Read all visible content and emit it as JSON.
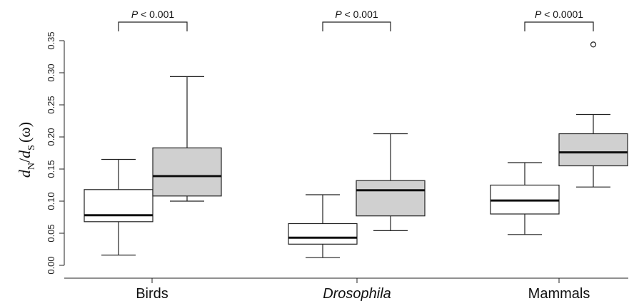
{
  "chart_data": {
    "type": "box",
    "ylabel": {
      "d1": "d",
      "sub1": "N",
      "slash": "/",
      "d2": "d",
      "sub2": "S",
      "suffix": "(ω)"
    },
    "ylim": [
      0,
      0.37
    ],
    "yticks": [
      "0.00",
      "0.05",
      "0.10",
      "0.15",
      "0.20",
      "0.25",
      "0.30",
      "0.35"
    ],
    "ytick_values": [
      0,
      0.05,
      0.1,
      0.15,
      0.2,
      0.25,
      0.3,
      0.35
    ],
    "grid": false,
    "colors": {
      "white_box": "#ffffff",
      "gray_box": "#d0d0d0",
      "stroke": "#222222"
    },
    "groups": [
      {
        "category": "Birds",
        "italic": false,
        "pvalue": {
          "p": "P",
          "rest": " < 0.001"
        },
        "boxes": [
          {
            "fill": "white",
            "whisker_low": 0.016,
            "q1": 0.068,
            "median": 0.078,
            "q3": 0.118,
            "whisker_high": 0.165,
            "outliers": []
          },
          {
            "fill": "gray",
            "whisker_low": 0.1,
            "q1": 0.108,
            "median": 0.139,
            "q3": 0.183,
            "whisker_high": 0.294,
            "outliers": []
          }
        ]
      },
      {
        "category": "Drosophila",
        "italic": true,
        "pvalue": {
          "p": "P",
          "rest": " < 0.001"
        },
        "boxes": [
          {
            "fill": "white",
            "whisker_low": 0.012,
            "q1": 0.033,
            "median": 0.043,
            "q3": 0.065,
            "whisker_high": 0.11,
            "outliers": []
          },
          {
            "fill": "gray",
            "whisker_low": 0.054,
            "q1": 0.077,
            "median": 0.117,
            "q3": 0.132,
            "whisker_high": 0.205,
            "outliers": []
          }
        ]
      },
      {
        "category": "Mammals",
        "italic": false,
        "pvalue": {
          "p": "P",
          "rest": " < 0.0001"
        },
        "boxes": [
          {
            "fill": "white",
            "whisker_low": 0.048,
            "q1": 0.08,
            "median": 0.101,
            "q3": 0.125,
            "whisker_high": 0.16,
            "outliers": []
          },
          {
            "fill": "gray",
            "whisker_low": 0.122,
            "q1": 0.155,
            "median": 0.176,
            "q3": 0.205,
            "whisker_high": 0.235,
            "outliers": [
              0.344
            ]
          }
        ]
      }
    ]
  }
}
